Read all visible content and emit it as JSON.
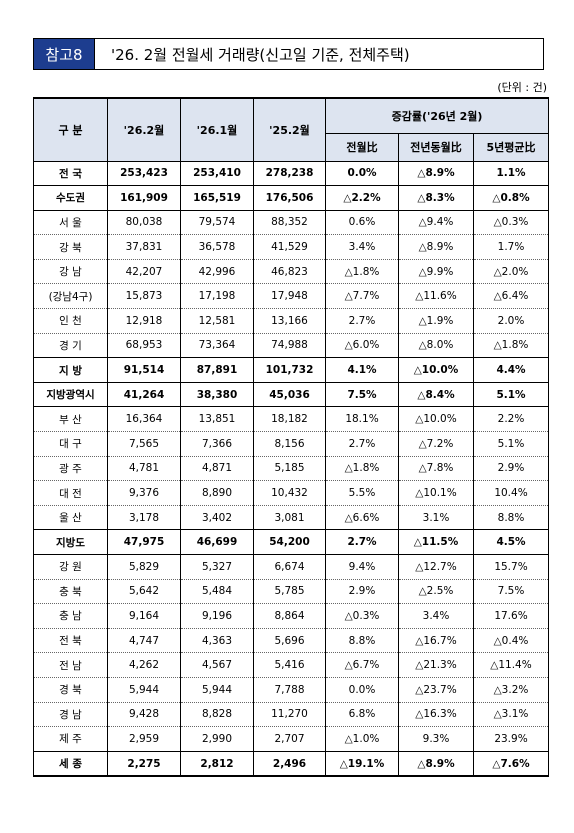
{
  "header": {
    "label": "참고8",
    "title": "'26. 2월 전월세 거래량(신고일 기준, 전체주택)"
  },
  "unit": "(단위 : 건)",
  "table": {
    "columns": {
      "region": "구 분",
      "cur": "'26.2월",
      "prev": "'26.1월",
      "last_year": "'25.2월",
      "change_group": "증감률('26년 2월)",
      "change": [
        "전월比",
        "전년동월比",
        "5년평균比"
      ]
    },
    "rows": [
      {
        "cells": [
          "전 국",
          "253,423",
          "253,410",
          "278,238",
          "0.0%",
          "△8.9%",
          "1.1%"
        ],
        "bold": true
      },
      {
        "cells": [
          "수도권",
          "161,909",
          "165,519",
          "176,506",
          "△2.2%",
          "△8.3%",
          "△0.8%"
        ],
        "bold": true
      },
      {
        "cells": [
          "서 울",
          "80,038",
          "79,574",
          "88,352",
          "0.6%",
          "△9.4%",
          "△0.3%"
        ]
      },
      {
        "cells": [
          "강 북",
          "37,831",
          "36,578",
          "41,529",
          "3.4%",
          "△8.9%",
          "1.7%"
        ]
      },
      {
        "cells": [
          "강 남",
          "42,207",
          "42,996",
          "46,823",
          "△1.8%",
          "△9.9%",
          "△2.0%"
        ]
      },
      {
        "cells": [
          "(강남4구)",
          "15,873",
          "17,198",
          "17,948",
          "△7.7%",
          "△11.6%",
          "△6.4%"
        ]
      },
      {
        "cells": [
          "인 천",
          "12,918",
          "12,581",
          "13,166",
          "2.7%",
          "△1.9%",
          "2.0%"
        ]
      },
      {
        "cells": [
          "경 기",
          "68,953",
          "73,364",
          "74,988",
          "△6.0%",
          "△8.0%",
          "△1.8%"
        ]
      },
      {
        "cells": [
          "지 방",
          "91,514",
          "87,891",
          "101,732",
          "4.1%",
          "△10.0%",
          "4.4%"
        ],
        "bold": true
      },
      {
        "cells": [
          "지방광역시",
          "41,264",
          "38,380",
          "45,036",
          "7.5%",
          "△8.4%",
          "5.1%"
        ],
        "bold": true
      },
      {
        "cells": [
          "부 산",
          "16,364",
          "13,851",
          "18,182",
          "18.1%",
          "△10.0%",
          "2.2%"
        ]
      },
      {
        "cells": [
          "대 구",
          "7,565",
          "7,366",
          "8,156",
          "2.7%",
          "△7.2%",
          "5.1%"
        ]
      },
      {
        "cells": [
          "광 주",
          "4,781",
          "4,871",
          "5,185",
          "△1.8%",
          "△7.8%",
          "2.9%"
        ]
      },
      {
        "cells": [
          "대 전",
          "9,376",
          "8,890",
          "10,432",
          "5.5%",
          "△10.1%",
          "10.4%"
        ]
      },
      {
        "cells": [
          "울 산",
          "3,178",
          "3,402",
          "3,081",
          "△6.6%",
          "3.1%",
          "8.8%"
        ]
      },
      {
        "cells": [
          "지방도",
          "47,975",
          "46,699",
          "54,200",
          "2.7%",
          "△11.5%",
          "4.5%"
        ],
        "bold": true
      },
      {
        "cells": [
          "강 원",
          "5,829",
          "5,327",
          "6,674",
          "9.4%",
          "△12.7%",
          "15.7%"
        ]
      },
      {
        "cells": [
          "충 북",
          "5,642",
          "5,484",
          "5,785",
          "2.9%",
          "△2.5%",
          "7.5%"
        ]
      },
      {
        "cells": [
          "충 남",
          "9,164",
          "9,196",
          "8,864",
          "△0.3%",
          "3.4%",
          "17.6%"
        ]
      },
      {
        "cells": [
          "전 북",
          "4,747",
          "4,363",
          "5,696",
          "8.8%",
          "△16.7%",
          "△0.4%"
        ]
      },
      {
        "cells": [
          "전 남",
          "4,262",
          "4,567",
          "5,416",
          "△6.7%",
          "△21.3%",
          "△11.4%"
        ]
      },
      {
        "cells": [
          "경 북",
          "5,944",
          "5,944",
          "7,788",
          "0.0%",
          "△23.7%",
          "△3.2%"
        ]
      },
      {
        "cells": [
          "경 남",
          "9,428",
          "8,828",
          "11,270",
          "6.8%",
          "△16.3%",
          "△3.1%"
        ]
      },
      {
        "cells": [
          "제 주",
          "2,959",
          "2,990",
          "2,707",
          "△1.0%",
          "9.3%",
          "23.9%"
        ]
      },
      {
        "cells": [
          "세 종",
          "2,275",
          "2,812",
          "2,496",
          "△19.1%",
          "△8.9%",
          "△7.6%"
        ],
        "bold": true
      }
    ]
  }
}
